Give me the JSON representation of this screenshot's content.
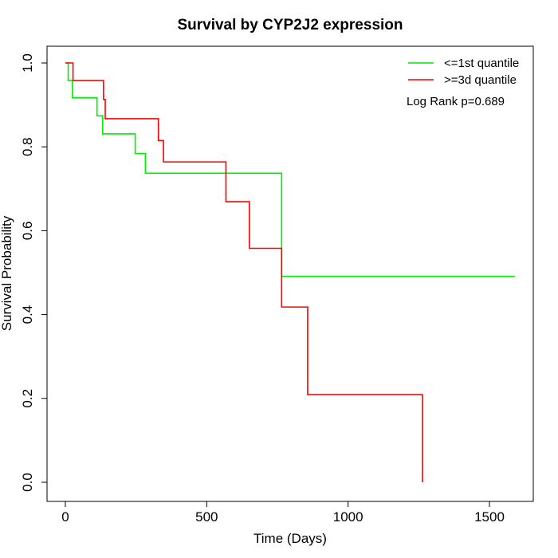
{
  "chart_data": {
    "type": "line",
    "subtype": "kaplan-meier-step",
    "title": "Survival by CYP2J2 expression",
    "xlabel": "Time (Days)",
    "ylabel": "Survival Probability",
    "xlim": [
      0,
      1600
    ],
    "ylim": [
      0,
      1
    ],
    "xticks": [
      0,
      500,
      1000,
      1500
    ],
    "xtick_labels": [
      "0",
      "500",
      "1000",
      "1500"
    ],
    "yticks": [
      0,
      0.2,
      0.4,
      0.6,
      0.8,
      1
    ],
    "ytick_labels": [
      "0.0",
      "0.2",
      "0.4",
      "0.6",
      "0.8",
      "1.0"
    ],
    "grid": false,
    "legend_position": "top-right",
    "annotation": "Log Rank p=0.689",
    "series": [
      {
        "name": "<=1st quantile",
        "color": "#00ee00",
        "x": [
          0,
          10,
          25,
          112,
          132,
          247,
          283,
          765,
          1590
        ],
        "y": [
          1.0,
          0.958,
          0.917,
          0.874,
          0.831,
          0.784,
          0.737,
          0.491,
          0.491
        ]
      },
      {
        "name": ">=3d quantile",
        "color": "#ff0000",
        "x": [
          0,
          27,
          135,
          141,
          329,
          347,
          568,
          651,
          765,
          857,
          1263
        ],
        "y": [
          1.0,
          0.958,
          0.913,
          0.867,
          0.815,
          0.764,
          0.669,
          0.558,
          0.418,
          0.209,
          0.0
        ]
      }
    ]
  }
}
